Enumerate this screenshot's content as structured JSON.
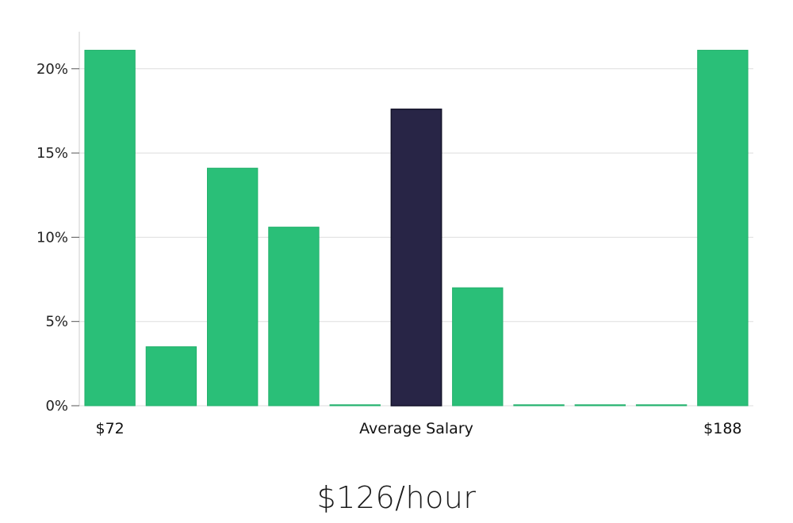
{
  "chart_data": {
    "type": "bar",
    "bar_count": 11,
    "values": [
      21.1,
      3.5,
      14.1,
      10.6,
      0,
      17.6,
      7.0,
      0,
      0,
      0,
      21.1
    ],
    "highlight_index": 5,
    "ylim": [
      0,
      22.2
    ],
    "y_ticks": [
      0,
      5,
      10,
      15,
      20
    ],
    "y_tick_format": "{v}%",
    "category_labels": [
      {
        "index": 0,
        "text": "$72"
      },
      {
        "index": 5,
        "text": "Average Salary"
      },
      {
        "index": 10,
        "text": "$188"
      }
    ],
    "grid": true,
    "colors": {
      "bar": "#2abf78",
      "highlight": "#282546",
      "grid": "#dddddd",
      "axis": "#cccccc"
    }
  },
  "headline": "$126/hour"
}
